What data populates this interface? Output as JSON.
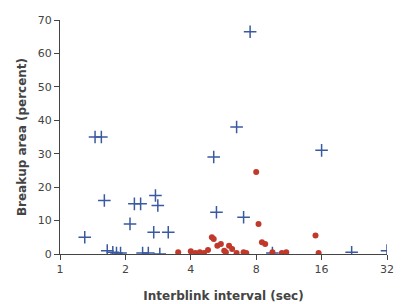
{
  "chart_data": {
    "type": "scatter",
    "xlabel": "Interblink interval (sec)",
    "ylabel": "Breakup area (percent)",
    "log": "x",
    "xlim": [
      1,
      32
    ],
    "ylim": [
      0,
      70
    ],
    "xticks": [
      1,
      2,
      4,
      8,
      16,
      32
    ],
    "yticks": [
      0,
      10,
      20,
      30,
      40,
      50,
      60,
      70
    ],
    "grid": false,
    "series": [
      {
        "color": "#3a5aa0",
        "marker": "plus",
        "x": [
          1.3,
          1.45,
          1.55,
          1.6,
          1.65,
          1.75,
          1.82,
          1.9,
          2.1,
          2.2,
          2.35,
          2.4,
          2.55,
          2.7,
          2.75,
          2.82,
          2.88,
          3.15,
          5.1,
          5.25,
          6.5,
          7.0,
          7.5,
          9.5,
          16.0,
          22.0,
          32.0
        ],
        "values": [
          5.0,
          35.0,
          35.0,
          16.0,
          1.0,
          0.5,
          0.3,
          0.3,
          9.0,
          15.0,
          15.0,
          0.3,
          0.3,
          6.5,
          17.5,
          14.5,
          0.0,
          6.5,
          29.0,
          12.5,
          38.0,
          11.0,
          66.5,
          0.3,
          31.0,
          0.5,
          1.0
        ]
      },
      {
        "color": "#c0392b",
        "marker": "circle",
        "x": [
          3.5,
          4.0,
          4.2,
          4.4,
          4.6,
          4.8,
          5.0,
          5.1,
          5.3,
          5.5,
          5.7,
          5.8,
          6.0,
          6.2,
          6.5,
          7.0,
          7.2,
          8.0,
          8.2,
          8.5,
          8.8,
          9.5,
          10.5,
          11.0,
          15.0,
          15.5
        ],
        "values": [
          0.5,
          0.8,
          0.3,
          0.5,
          0.3,
          1.2,
          5.0,
          4.5,
          2.5,
          3.0,
          1.0,
          0.5,
          2.5,
          1.5,
          0.3,
          0.5,
          0.3,
          24.5,
          9.0,
          3.5,
          3.0,
          0.5,
          0.3,
          0.5,
          5.5,
          0.3
        ]
      }
    ]
  }
}
